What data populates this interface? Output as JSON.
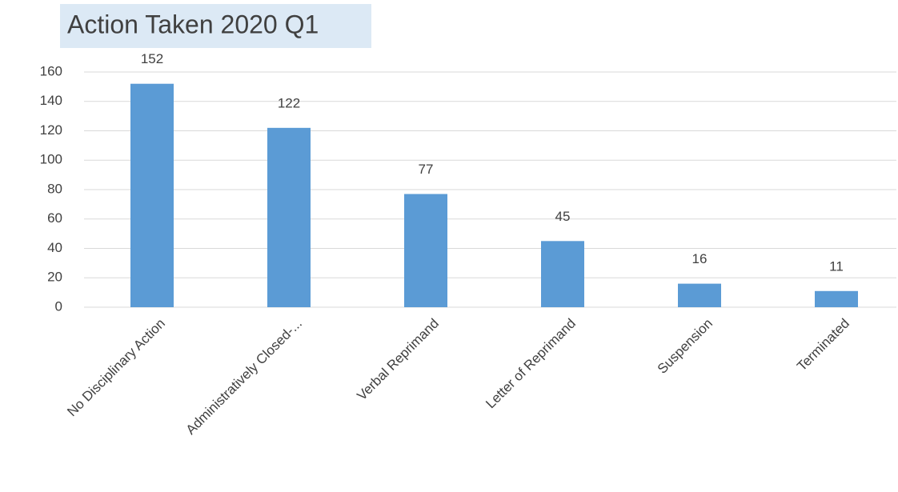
{
  "chart_data": {
    "type": "bar",
    "title": "Action Taken 2020 Q1",
    "categories": [
      "No Disciplinary Action",
      "Administratively Closed-...",
      "Verbal Reprimand",
      "Letter of Reprimand",
      "Suspension",
      "Terminated"
    ],
    "values": [
      152,
      122,
      77,
      45,
      16,
      11
    ],
    "color": "#5b9bd5",
    "ylim": [
      0,
      160
    ],
    "yticks": [
      0,
      20,
      40,
      60,
      80,
      100,
      120,
      140,
      160
    ],
    "grid": true
  }
}
